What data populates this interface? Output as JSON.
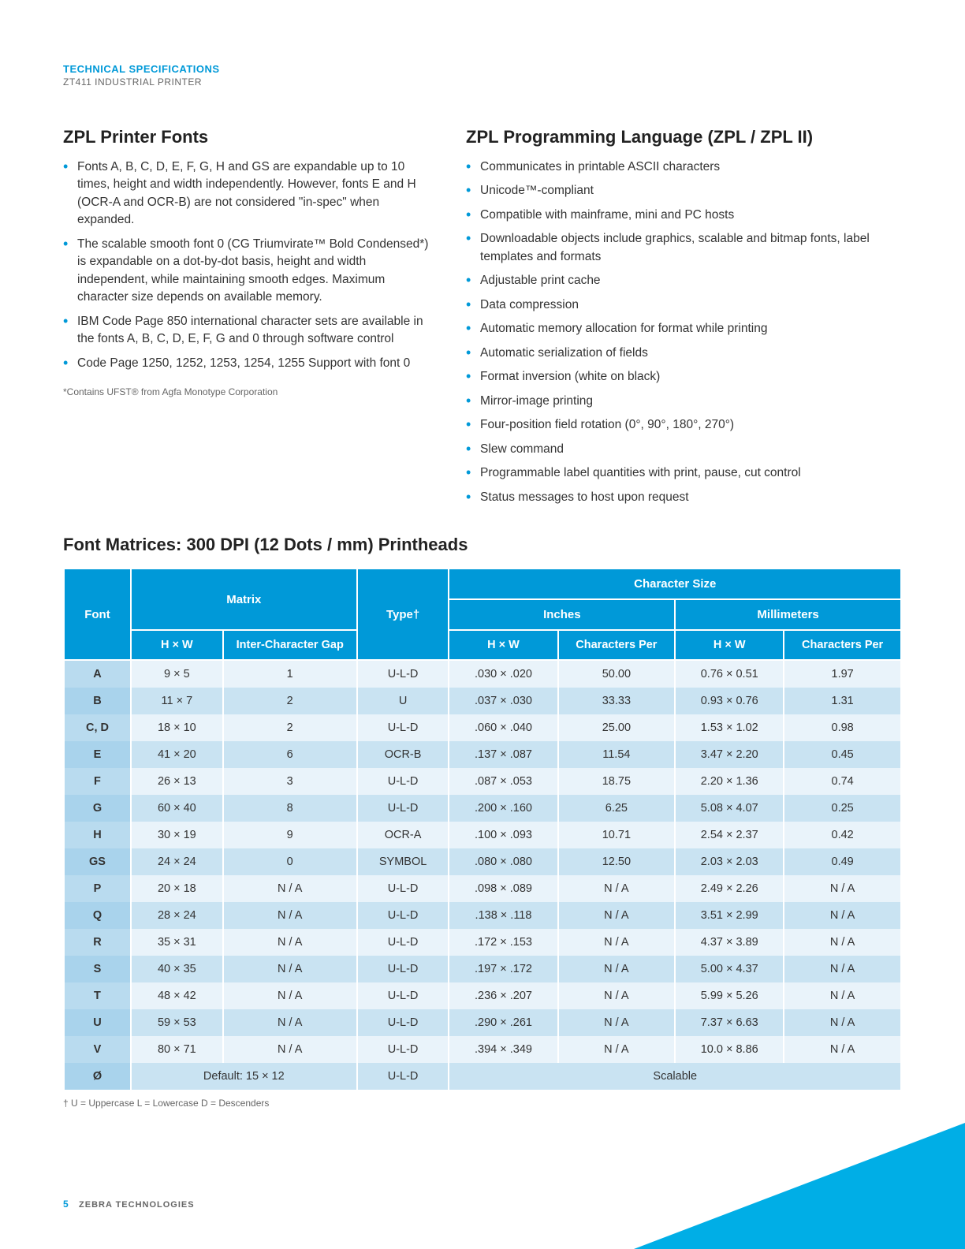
{
  "header": {
    "label": "TECHNICAL SPECIFICATIONS",
    "sub": "ZT411 INDUSTRIAL PRINTER"
  },
  "left": {
    "title": "ZPL Printer Fonts",
    "bullets": [
      "Fonts A, B, C, D, E, F, G, H and GS are expandable up to 10 times, height and width independently. However, fonts E and H (OCR-A and OCR-B) are not considered \"in-spec\" when expanded.",
      "The scalable smooth font 0 (CG Triumvirate™ Bold Condensed*) is expandable on a dot-by-dot basis, height and width independent, while maintaining smooth edges. Maximum character size depends on available memory.",
      "IBM Code Page 850 international character sets are available in the fonts A, B, C, D, E, F, G and 0 through software control",
      "Code Page 1250, 1252, 1253, 1254, 1255 Support with font 0"
    ],
    "footnote": "*Contains UFST® from Agfa Monotype Corporation"
  },
  "right": {
    "title": "ZPL Programming Language (ZPL / ZPL II)",
    "bullets": [
      "Communicates in printable ASCII characters",
      "Unicode™-compliant",
      "Compatible with mainframe, mini and PC hosts",
      "Downloadable objects include graphics, scalable and bitmap fonts, label templates and formats",
      "Adjustable print cache",
      "Data compression",
      "Automatic memory allocation for format while printing",
      "Automatic serialization of fields",
      "Format inversion (white on black)",
      "Mirror-image printing",
      "Four-position field rotation (0°, 90°, 180°, 270°)",
      "Slew command",
      "Programmable label quantities with print, pause, cut control",
      "Status messages to host upon request"
    ]
  },
  "matrices": {
    "title": "Font Matrices: 300 DPI (12 Dots / mm) Printheads",
    "headers": {
      "font": "Font",
      "matrix": "Matrix",
      "hxw": "H × W",
      "gap": "Inter-Character Gap",
      "type": "Type†",
      "charsize": "Character Size",
      "inches": "Inches",
      "mm": "Millimeters",
      "cper": "Characters Per"
    },
    "rows": [
      {
        "font": "A",
        "hxw": "9 × 5",
        "gap": "1",
        "type": "U-L-D",
        "ihxw": ".030 × .020",
        "icper": "50.00",
        "mhxw": "0.76 × 0.51",
        "mcper": "1.97"
      },
      {
        "font": "B",
        "hxw": "11 × 7",
        "gap": "2",
        "type": "U",
        "ihxw": ".037 × .030",
        "icper": "33.33",
        "mhxw": "0.93 × 0.76",
        "mcper": "1.31"
      },
      {
        "font": "C, D",
        "hxw": "18 × 10",
        "gap": "2",
        "type": "U-L-D",
        "ihxw": ".060 × .040",
        "icper": "25.00",
        "mhxw": "1.53 × 1.02",
        "mcper": "0.98"
      },
      {
        "font": "E",
        "hxw": "41 × 20",
        "gap": "6",
        "type": "OCR-B",
        "ihxw": ".137 × .087",
        "icper": "11.54",
        "mhxw": "3.47 × 2.20",
        "mcper": "0.45"
      },
      {
        "font": "F",
        "hxw": "26 × 13",
        "gap": "3",
        "type": "U-L-D",
        "ihxw": ".087 × .053",
        "icper": "18.75",
        "mhxw": "2.20 × 1.36",
        "mcper": "0.74"
      },
      {
        "font": "G",
        "hxw": "60 × 40",
        "gap": "8",
        "type": "U-L-D",
        "ihxw": ".200 × .160",
        "icper": "6.25",
        "mhxw": "5.08 × 4.07",
        "mcper": "0.25"
      },
      {
        "font": "H",
        "hxw": "30 × 19",
        "gap": "9",
        "type": "OCR-A",
        "ihxw": ".100 × .093",
        "icper": "10.71",
        "mhxw": "2.54 × 2.37",
        "mcper": "0.42"
      },
      {
        "font": "GS",
        "hxw": "24 × 24",
        "gap": "0",
        "type": "SYMBOL",
        "ihxw": ".080 × .080",
        "icper": "12.50",
        "mhxw": "2.03 × 2.03",
        "mcper": "0.49"
      },
      {
        "font": "P",
        "hxw": "20 × 18",
        "gap": "N / A",
        "type": "U-L-D",
        "ihxw": ".098 × .089",
        "icper": "N / A",
        "mhxw": "2.49 × 2.26",
        "mcper": "N / A"
      },
      {
        "font": "Q",
        "hxw": "28 × 24",
        "gap": "N / A",
        "type": "U-L-D",
        "ihxw": ".138 × .118",
        "icper": "N / A",
        "mhxw": "3.51 × 2.99",
        "mcper": "N / A"
      },
      {
        "font": "R",
        "hxw": "35 × 31",
        "gap": "N / A",
        "type": "U-L-D",
        "ihxw": ".172 × .153",
        "icper": "N / A",
        "mhxw": "4.37 × 3.89",
        "mcper": "N / A"
      },
      {
        "font": "S",
        "hxw": "40 × 35",
        "gap": "N / A",
        "type": "U-L-D",
        "ihxw": ".197 × .172",
        "icper": "N / A",
        "mhxw": "5.00 × 4.37",
        "mcper": "N / A"
      },
      {
        "font": "T",
        "hxw": "48 × 42",
        "gap": "N / A",
        "type": "U-L-D",
        "ihxw": ".236 × .207",
        "icper": "N / A",
        "mhxw": "5.99 × 5.26",
        "mcper": "N / A"
      },
      {
        "font": "U",
        "hxw": "59 × 53",
        "gap": "N / A",
        "type": "U-L-D",
        "ihxw": ".290 × .261",
        "icper": "N / A",
        "mhxw": "7.37 × 6.63",
        "mcper": "N / A"
      },
      {
        "font": "V",
        "hxw": "80 × 71",
        "gap": "N / A",
        "type": "U-L-D",
        "ihxw": ".394 × .349",
        "icper": "N / A",
        "mhxw": "10.0 × 8.86",
        "mcper": "N / A"
      }
    ],
    "lastrow": {
      "font": "Ø",
      "default": "Default: 15 × 12",
      "type": "U-L-D",
      "scalable": "Scalable"
    },
    "legend": "†  U = Uppercase     L = Lowercase     D = Descenders"
  },
  "footer": {
    "num": "5",
    "company": "ZEBRA TECHNOLOGIES"
  }
}
